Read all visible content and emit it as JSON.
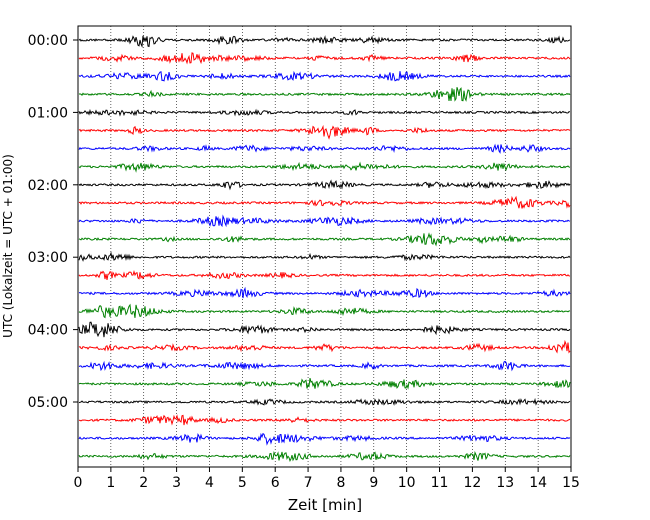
{
  "chart_data": {
    "type": "line",
    "title": "",
    "xlabel": "Zeit  [min]",
    "ylabel": "UTC (Lokalzeit = UTC + 01:00)",
    "xlim": [
      0,
      15
    ],
    "x_ticks": [
      "0",
      "1",
      "2",
      "3",
      "4",
      "5",
      "6",
      "7",
      "8",
      "9",
      "10",
      "11",
      "12",
      "13",
      "14",
      "15"
    ],
    "y_tick_labels": [
      "00:00",
      "01:00",
      "02:00",
      "03:00",
      "04:00",
      "05:00"
    ],
    "grid": "vertical dotted at each minute",
    "trace_interval_min": 15,
    "trace_count": 24,
    "trace_colors": [
      "#000000",
      "#ff0000",
      "#0000ff",
      "#008000"
    ]
  }
}
